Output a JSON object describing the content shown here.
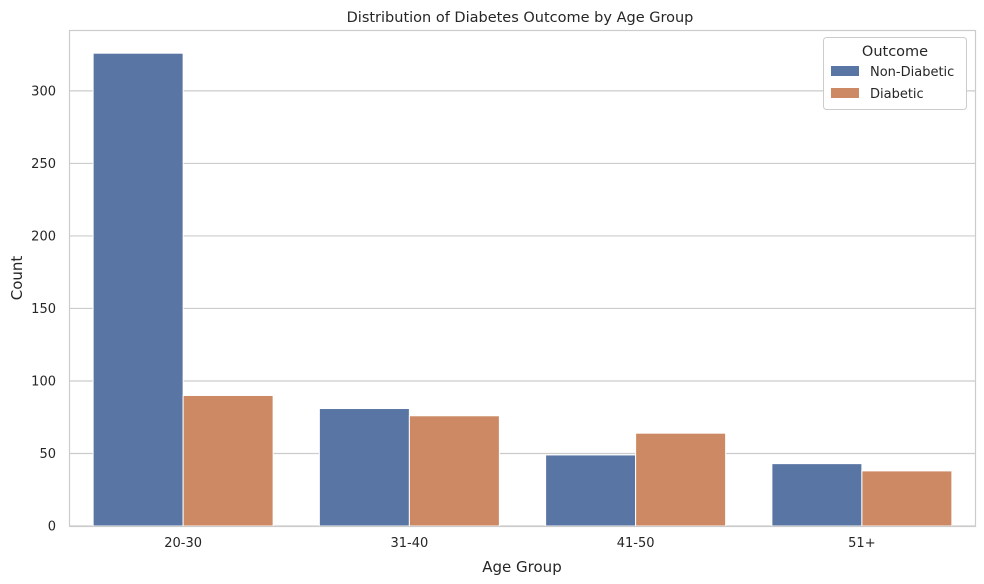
{
  "chart_data": {
    "type": "bar",
    "title": "Distribution of Diabetes Outcome by Age Group",
    "xlabel": "Age Group",
    "ylabel": "Count",
    "categories": [
      "20-30",
      "31-40",
      "41-50",
      "51+"
    ],
    "series": [
      {
        "name": "Non-Diabetic",
        "values": [
          326,
          81,
          49,
          43
        ],
        "color": "#5875a4"
      },
      {
        "name": "Diabetic",
        "values": [
          90,
          76,
          64,
          38
        ],
        "color": "#cc8963"
      }
    ],
    "ylim": [
      0,
      342
    ],
    "yticks": [
      0,
      50,
      100,
      150,
      200,
      250,
      300
    ],
    "grid": true,
    "legend": {
      "title": "Outcome",
      "placement": "top-right"
    }
  }
}
